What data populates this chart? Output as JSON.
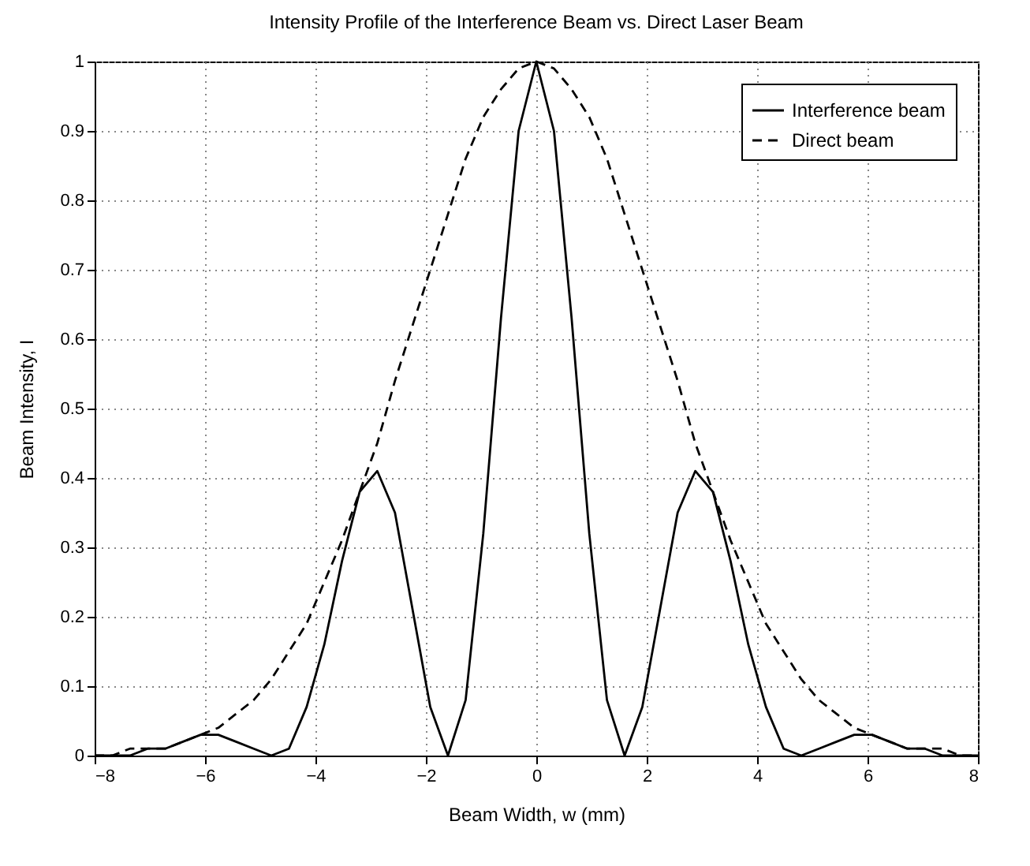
{
  "chart_data": {
    "type": "line",
    "title": "Intensity Profile of the Interference Beam vs. Direct Laser Beam",
    "xlabel": "Beam Width, w (mm)",
    "ylabel": "Beam Intensity, I",
    "x": [
      -8,
      -7.68,
      -7.36,
      -7.04,
      -6.72,
      -6.4,
      -6.08,
      -5.76,
      -5.44,
      -5.12,
      -4.8,
      -4.48,
      -4.16,
      -3.84,
      -3.52,
      -3.2,
      -2.88,
      -2.56,
      -2.24,
      -1.92,
      -1.6,
      -1.28,
      -0.96,
      -0.64,
      -0.32,
      0,
      0.32,
      0.64,
      0.96,
      1.28,
      1.6,
      1.92,
      2.24,
      2.56,
      2.88,
      3.2,
      3.52,
      3.84,
      4.16,
      4.48,
      4.8,
      5.12,
      5.44,
      5.76,
      6.08,
      6.4,
      6.72,
      7.04,
      7.36,
      7.68,
      8
    ],
    "series": [
      {
        "name": "Interference beam",
        "color": "#000000",
        "line_style": "solid",
        "values": [
          0,
          0,
          0,
          0.01,
          0.01,
          0.02,
          0.03,
          0.03,
          0.02,
          0.01,
          0,
          0.01,
          0.07,
          0.16,
          0.28,
          0.38,
          0.41,
          0.35,
          0.21,
          0.07,
          0,
          0.08,
          0.32,
          0.63,
          0.9,
          1,
          0.9,
          0.63,
          0.32,
          0.08,
          0,
          0.07,
          0.21,
          0.35,
          0.41,
          0.38,
          0.28,
          0.16,
          0.07,
          0.01,
          0,
          0.01,
          0.02,
          0.03,
          0.03,
          0.02,
          0.01,
          0.01,
          0,
          0,
          0
        ]
      },
      {
        "name": "Direct beam",
        "color": "#000000",
        "line_style": "dashed",
        "values": [
          0,
          0,
          0.01,
          0.01,
          0.01,
          0.02,
          0.03,
          0.04,
          0.06,
          0.08,
          0.11,
          0.15,
          0.19,
          0.25,
          0.31,
          0.38,
          0.45,
          0.54,
          0.62,
          0.7,
          0.78,
          0.86,
          0.92,
          0.96,
          0.99,
          1,
          0.99,
          0.96,
          0.92,
          0.86,
          0.78,
          0.7,
          0.62,
          0.54,
          0.45,
          0.38,
          0.31,
          0.25,
          0.19,
          0.15,
          0.11,
          0.08,
          0.06,
          0.04,
          0.03,
          0.02,
          0.01,
          0.01,
          0.01,
          0,
          0
        ]
      }
    ],
    "xlim": [
      -8,
      8
    ],
    "xticks": [
      -8,
      -6,
      -4,
      -2,
      0,
      2,
      4,
      6,
      8
    ],
    "ylim": [
      0,
      1
    ],
    "yticks": [
      0,
      0.1,
      0.2,
      0.3,
      0.4,
      0.5,
      0.6,
      0.7,
      0.8,
      0.9,
      1
    ],
    "grid": true,
    "legend": "top right",
    "marker": "none"
  }
}
